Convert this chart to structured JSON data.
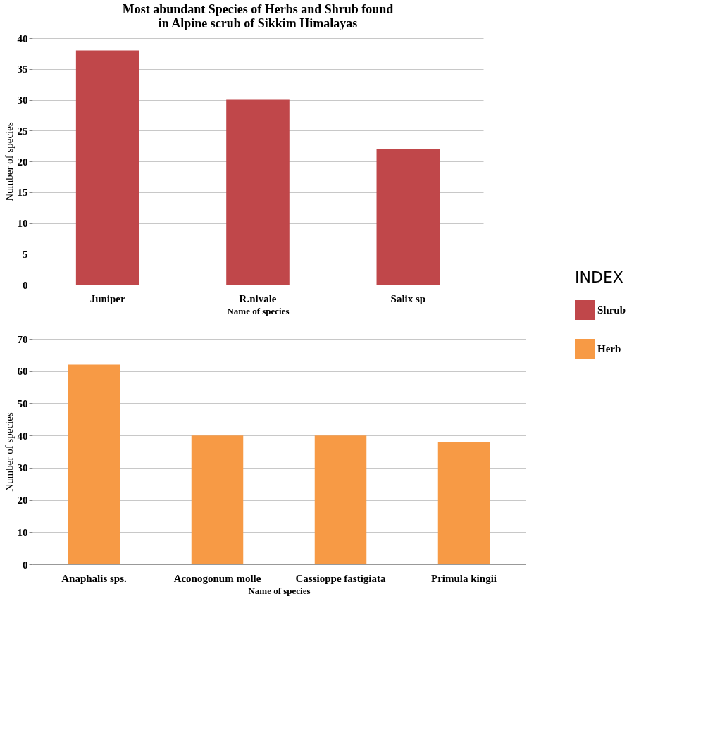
{
  "chart_data": [
    {
      "type": "bar",
      "title": [
        "Most abundant Species of  Herbs and Shrub  found",
        "in Alpine scrub of Sikkim Himalayas"
      ],
      "xlabel": "Name of species",
      "ylabel": "Number of species",
      "categories": [
        "Juniper",
        "R.nivale",
        "Salix sp"
      ],
      "series": [
        {
          "name": "Shrub",
          "color": "#c0474a",
          "values": [
            38,
            30,
            22
          ]
        }
      ],
      "ylim": [
        0,
        40
      ],
      "yticks": [
        0,
        5,
        10,
        15,
        20,
        25,
        30,
        35,
        40
      ],
      "grid": "y",
      "legend": "right",
      "legend_title": "INDEX"
    },
    {
      "type": "bar",
      "xlabel": "Name of species",
      "ylabel": "Number of species",
      "categories": [
        "Anaphalis sps.",
        "Aconogonum molle",
        "Cassioppe fastigiata",
        "Primula kingii"
      ],
      "series": [
        {
          "name": "Herb",
          "color": "#f79a45",
          "values": [
            62,
            40,
            40,
            38
          ]
        }
      ],
      "ylim": [
        0,
        70
      ],
      "yticks": [
        0,
        10,
        20,
        30,
        40,
        50,
        60,
        70
      ],
      "grid": "y",
      "legend": "right"
    }
  ]
}
